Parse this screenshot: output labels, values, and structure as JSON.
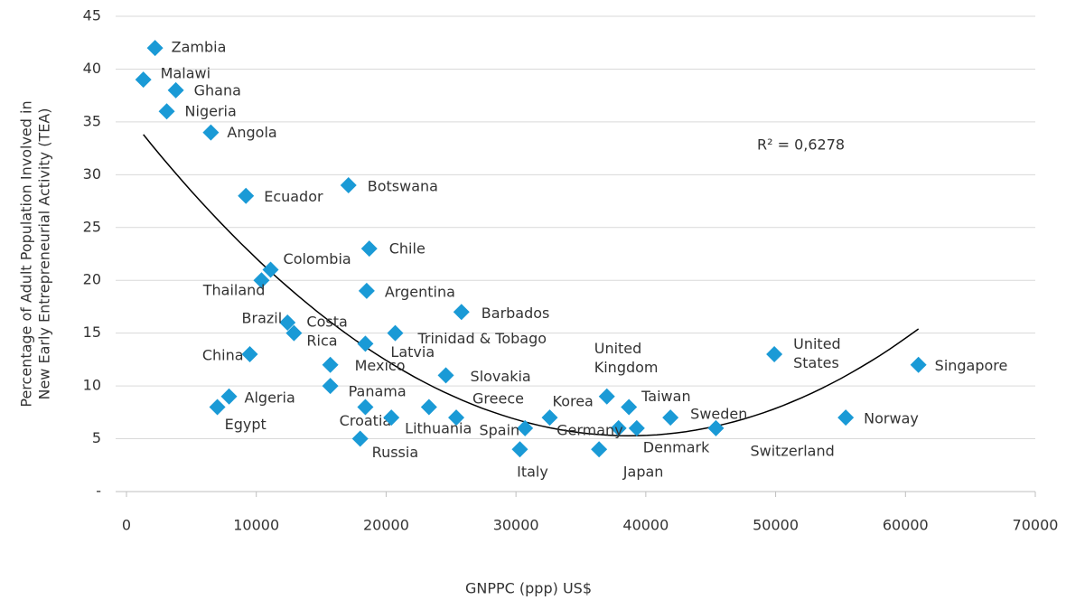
{
  "chart_data": {
    "type": "scatter",
    "x_label": "GNPPC (ppp) US$",
    "y_label": [
      "Percentage of Adult Population Involved in",
      "New Early Entrepreneurial Activity (TEA)"
    ],
    "annotation": "R² = 0,6278",
    "trendline": "polynomial",
    "color": "#1a9ad6",
    "grid": true,
    "xlim": [
      0,
      70000
    ],
    "xticks": [
      0,
      10000,
      20000,
      30000,
      40000,
      50000,
      60000,
      70000
    ],
    "ylim": [
      0,
      45
    ],
    "yticks": [
      {
        "value": 0,
        "label": "-"
      },
      5,
      10,
      15,
      20,
      25,
      30,
      35,
      40,
      45
    ],
    "labels": [
      "Zambia",
      "Malawi",
      "Ghana",
      "Nigeria",
      "Angola",
      "Ecuador",
      "Botswana",
      "Chile",
      "Colombia",
      "Thailand",
      "Argentina",
      "Barbados",
      "Brazil",
      "Costa Rica",
      "Trinidad & Tobago",
      "Latvia",
      "China",
      "Mexico",
      "Slovakia",
      "Panama",
      "Algeria",
      "Egypt",
      "Croatia",
      null,
      "Greece",
      "Lithuania",
      "Spain",
      "Korea",
      "United Kingdom",
      "Taiwan",
      "Germany",
      "Denmark",
      "Russia",
      "Italy",
      "Japan",
      "Sweden",
      "Switzerland",
      "United States",
      "Norway",
      "Singapore"
    ],
    "x": [
      2200,
      1300,
      3800,
      3100,
      6500,
      9200,
      17100,
      18700,
      11100,
      10400,
      18500,
      25800,
      12400,
      12900,
      20700,
      18400,
      9500,
      15700,
      24600,
      15700,
      7900,
      7000,
      18400,
      23300,
      25400,
      20400,
      30700,
      32600,
      37000,
      38700,
      37900,
      39300,
      18000,
      30300,
      36400,
      41900,
      45400,
      49900,
      55400,
      61000
    ],
    "values": [
      42,
      39,
      38,
      36,
      34,
      28,
      29,
      23,
      21,
      20,
      19,
      17,
      16,
      15,
      15,
      14,
      13,
      12,
      11,
      10,
      9,
      8,
      8,
      8,
      7,
      7,
      6,
      7,
      9,
      8,
      6,
      6,
      5,
      4,
      4,
      7,
      6,
      13,
      7,
      12
    ]
  }
}
